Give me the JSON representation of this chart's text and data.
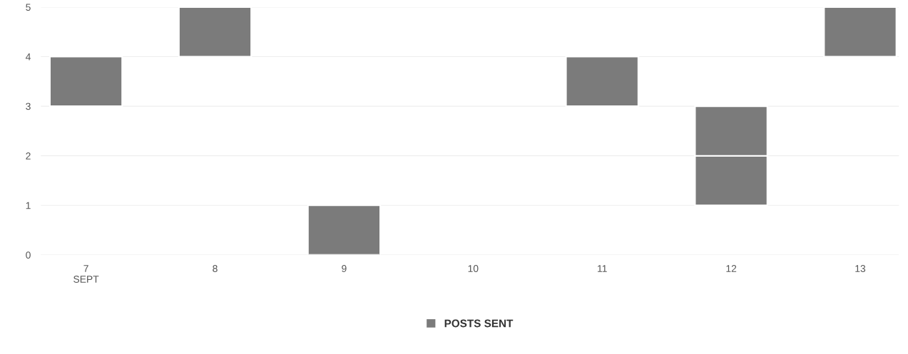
{
  "chart_data": {
    "type": "bar",
    "categories": [
      "7\nSEPT",
      "8",
      "9",
      "10",
      "11",
      "12",
      "13"
    ],
    "series": [
      {
        "name": "POSTS SENT",
        "color": "#7b7b7b",
        "values": [
          1,
          1,
          1,
          null,
          1,
          1,
          1
        ],
        "base": [
          3,
          4,
          0,
          null,
          3,
          1,
          4
        ]
      },
      {
        "color": "#7b7b7b",
        "values": [
          null,
          null,
          null,
          null,
          null,
          1,
          null
        ],
        "base": [
          null,
          null,
          null,
          null,
          null,
          2,
          null
        ]
      }
    ],
    "ylim": [
      0,
      5
    ],
    "yticks": [
      0,
      1,
      2,
      3,
      4,
      5
    ],
    "grid": "y",
    "legend": "bottom"
  }
}
